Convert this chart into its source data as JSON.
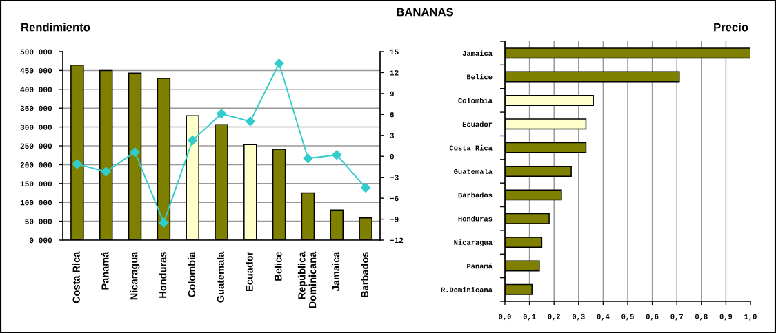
{
  "chart_data": [
    {
      "type": "bar",
      "title": "BANANAS",
      "subtitle": "Rendimiento",
      "categories": [
        "Costa Rica",
        "Panamá",
        "Nicaragua",
        "Honduras",
        "Colombia",
        "Guatemala",
        "Ecuador",
        "Belice",
        "República\nDominicana",
        "Jamaica",
        "Barbados"
      ],
      "series": [
        {
          "type": "bar",
          "colors": [
            "#808000",
            "#808000",
            "#808000",
            "#808000",
            "#ffffcc",
            "#808000",
            "#ffffcc",
            "#808000",
            "#808000",
            "#808000",
            "#808000"
          ],
          "values": [
            464000,
            450000,
            443000,
            429000,
            330000,
            306000,
            253000,
            241000,
            125000,
            80000,
            59000
          ]
        },
        {
          "type": "line",
          "axis": "y2",
          "color": "#33cccc",
          "values": [
            -1.1,
            -2.2,
            0.6,
            -9.5,
            2.3,
            6.1,
            5.0,
            13.3,
            -0.3,
            0.2,
            -4.5
          ]
        }
      ],
      "marker": "diamond",
      "line_style": "solid",
      "grid": "y",
      "ylim": [
        0,
        500000
      ],
      "yticks": [
        {
          "value": 0,
          "label": "0 000"
        },
        {
          "value": 50000,
          "label": "50 000"
        },
        {
          "value": 100000,
          "label": "100 000"
        },
        {
          "value": 150000,
          "label": "150 000"
        },
        {
          "value": 200000,
          "label": "200 000"
        },
        {
          "value": 250000,
          "label": "250 000"
        },
        {
          "value": 300000,
          "label": "300 000"
        },
        {
          "value": 350000,
          "label": "350 000"
        },
        {
          "value": 400000,
          "label": "400 000"
        },
        {
          "value": 450000,
          "label": "450 000"
        },
        {
          "value": 500000,
          "label": "500 000"
        }
      ],
      "y2lim": [
        -12,
        15
      ],
      "y2ticks": [
        {
          "value": -12,
          "label": "−12"
        },
        {
          "value": -9,
          "label": "−9"
        },
        {
          "value": -6,
          "label": "−6"
        },
        {
          "value": -3,
          "label": "−3"
        },
        0,
        3,
        6,
        9,
        12,
        15
      ]
    },
    {
      "type": "bar",
      "orientation": "horizontal",
      "title": "Precio",
      "categories": [
        "Jamaica",
        "Belice",
        "Colombia",
        "Ecuador",
        "Costa Rica",
        "Guatemala",
        "Barbados",
        "Honduras",
        "Nicaragua",
        "Panamá",
        "R.Dominicana"
      ],
      "colors": [
        "#808000",
        "#808000",
        "#ffffcc",
        "#ffffcc",
        "#808000",
        "#808000",
        "#808000",
        "#808000",
        "#808000",
        "#808000",
        "#808000"
      ],
      "values": [
        1.0,
        0.71,
        0.36,
        0.33,
        0.33,
        0.27,
        0.23,
        0.18,
        0.15,
        0.14,
        0.11
      ],
      "grid": "x",
      "xlim": [
        0,
        1.0
      ],
      "xticks": [
        {
          "value": 0,
          "label": "0,0"
        },
        {
          "value": 0.1,
          "label": "0,1"
        },
        {
          "value": 0.2,
          "label": "0,2"
        },
        {
          "value": 0.3,
          "label": "0,3"
        },
        {
          "value": 0.4,
          "label": "0,4"
        },
        {
          "value": 0.5,
          "label": "0,5"
        },
        {
          "value": 0.6,
          "label": "0,6"
        },
        {
          "value": 0.7,
          "label": "0,7"
        },
        {
          "value": 0.8,
          "label": "0,8"
        },
        {
          "value": 0.9,
          "label": "0,9"
        },
        {
          "value": 1.0,
          "label": "1,0"
        }
      ]
    }
  ]
}
